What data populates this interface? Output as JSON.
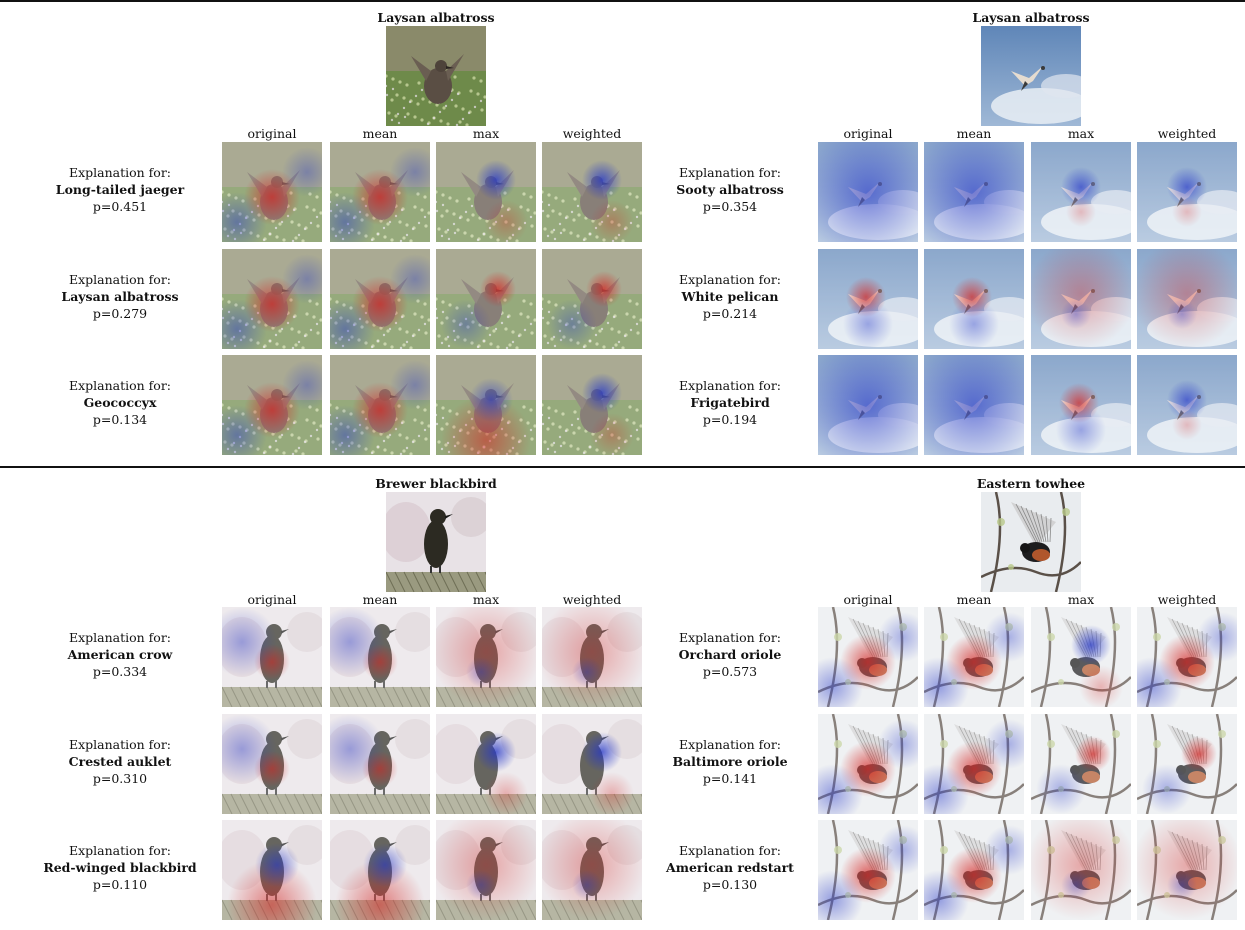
{
  "figure": {
    "column_headers": [
      "original",
      "mean",
      "max",
      "weighted"
    ],
    "explanation_prefix": "Explanation for:",
    "panels": [
      {
        "id": "top-left",
        "title": "Laysan albatross",
        "scene": "ground-bird",
        "rows": [
          {
            "class": "Long-tailed jaeger",
            "p": "p=0.451",
            "maps": [
              "red-center",
              "red-center",
              "blue-head",
              "blue-head"
            ]
          },
          {
            "class": "Laysan albatross",
            "p": "p=0.279",
            "maps": [
              "red-center",
              "red-center",
              "red-head",
              "red-head"
            ]
          },
          {
            "class": "Geococcyx",
            "p": "p=0.134",
            "maps": [
              "red-center",
              "red-center",
              "red-bottom",
              "blue-head"
            ]
          }
        ]
      },
      {
        "id": "top-right",
        "title": "Laysan albatross",
        "scene": "sky-bird",
        "rows": [
          {
            "class": "Sooty albatross",
            "p": "p=0.354",
            "maps": [
              "blue-all",
              "blue-all",
              "blue-spot",
              "blue-spot"
            ]
          },
          {
            "class": "White pelican",
            "p": "p=0.214",
            "maps": [
              "red-spot",
              "red-spot",
              "red-wide",
              "red-wide"
            ]
          },
          {
            "class": "Frigatebird",
            "p": "p=0.194",
            "maps": [
              "blue-all",
              "blue-all",
              "red-spot",
              "blue-spot"
            ]
          }
        ]
      },
      {
        "id": "bottom-left",
        "title": "Brewer blackbird",
        "scene": "perch-bird",
        "rows": [
          {
            "class": "American crow",
            "p": "p=0.334",
            "maps": [
              "red-chest",
              "red-chest",
              "red-wide",
              "red-wide"
            ]
          },
          {
            "class": "Crested auklet",
            "p": "p=0.310",
            "maps": [
              "red-chest",
              "red-chest",
              "blue-head",
              "blue-head"
            ]
          },
          {
            "class": "Red-winged blackbird",
            "p": "p=0.110",
            "maps": [
              "red-bottom",
              "red-bottom",
              "red-wide",
              "red-wide"
            ]
          }
        ]
      },
      {
        "id": "bottom-right",
        "title": "Eastern towhee",
        "scene": "branch-bird",
        "rows": [
          {
            "class": "Orchard oriole",
            "p": "p=0.573",
            "maps": [
              "red-center",
              "red-center",
              "blue-head",
              "red-center"
            ]
          },
          {
            "class": "Baltimore oriole",
            "p": "p=0.141",
            "maps": [
              "red-center",
              "red-center",
              "red-head",
              "red-head"
            ]
          },
          {
            "class": "American redstart",
            "p": "p=0.130",
            "maps": [
              "red-center",
              "red-center",
              "red-wide",
              "red-wide"
            ]
          }
        ]
      }
    ],
    "colors": {
      "positive": "#d4221f",
      "negative": "#2436c8"
    }
  }
}
